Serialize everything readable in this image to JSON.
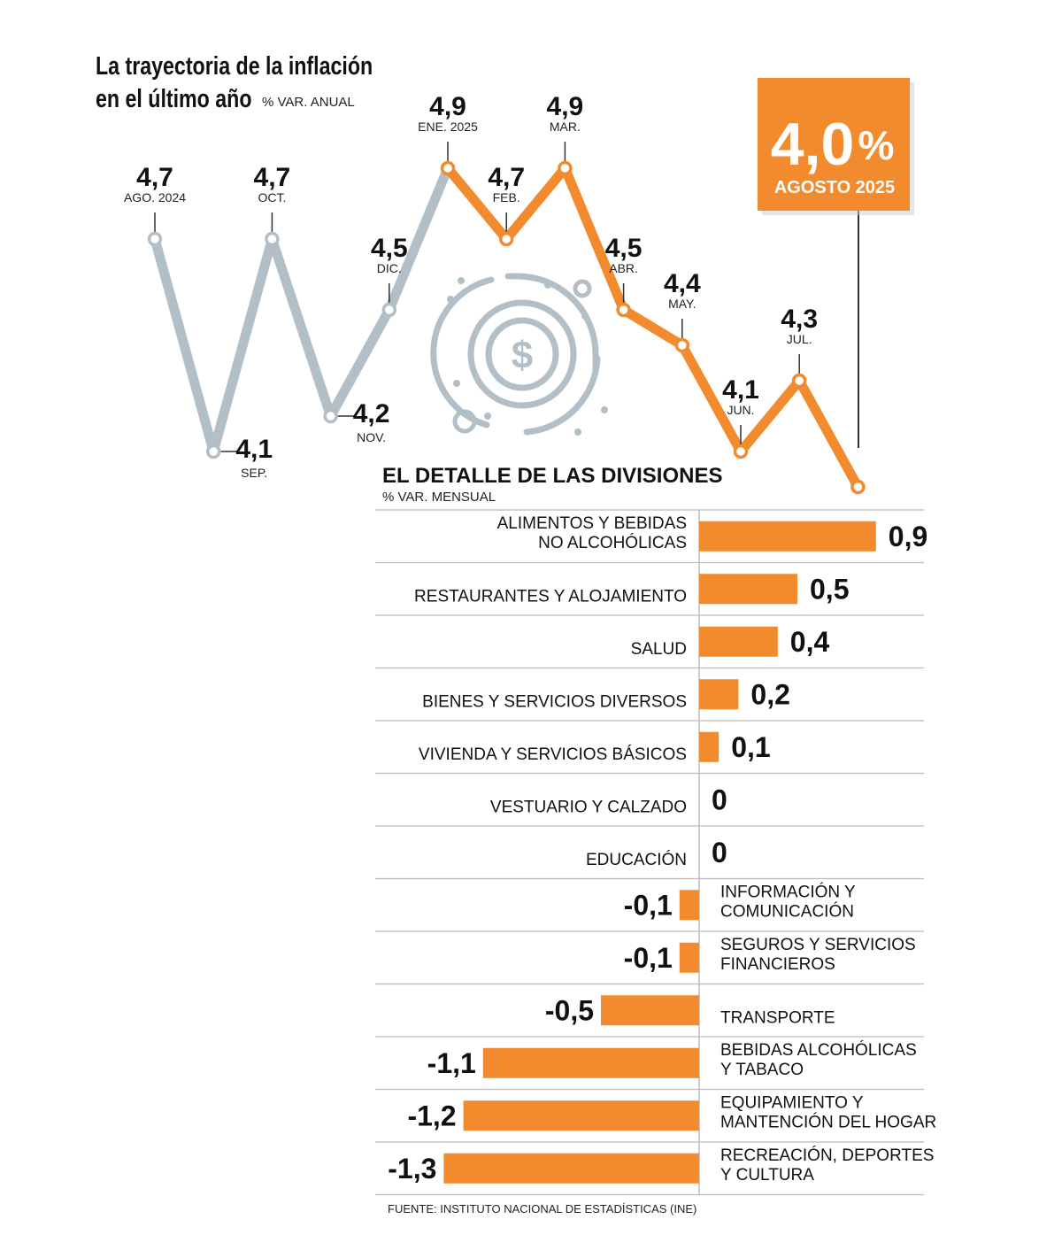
{
  "header": {
    "title_line1": "La trayectoria de la inflación",
    "title_line2": "en el último año",
    "unit": "% VAR. ANUAL"
  },
  "callout": {
    "value": "4,0",
    "unit": "%",
    "label": "AGOSTO 2025"
  },
  "detail": {
    "title": "EL DETALLE DE LAS DIVISIONES",
    "unit": "% VAR. MENSUAL"
  },
  "source": "FUENTE: INSTITUTO NACIONAL DE ESTADÍSTICAS (INE)",
  "colors": {
    "orange": "#F28A2E",
    "gray": "#B3BFC6",
    "grid": "#BBBBBB"
  },
  "icon": "dollar-coin-icon",
  "chart_data": [
    {
      "type": "line",
      "title": "La trayectoria de la inflación en el último año",
      "ylabel": "% VAR. ANUAL",
      "x": [
        "AGO. 2024",
        "SEP.",
        "OCT.",
        "NOV.",
        "DIC.",
        "ENE. 2025",
        "FEB.",
        "MAR.",
        "ABR.",
        "MAY.",
        "JUN.",
        "JUL.",
        ""
      ],
      "values": [
        4.7,
        4.1,
        4.7,
        4.2,
        4.5,
        4.9,
        4.7,
        4.9,
        4.5,
        4.4,
        4.1,
        4.3,
        4.0
      ],
      "value_labels": [
        "4,7",
        "4,1",
        "4,7",
        "4,2",
        "4,5",
        "4,9",
        "4,7",
        "4,9",
        "4,5",
        "4,4",
        "4,1",
        "4,3",
        ""
      ],
      "series_colors": {
        "2024": "#B3BFC6",
        "2025": "#F28A2E"
      }
    },
    {
      "type": "bar",
      "orientation": "horizontal",
      "title": "EL DETALLE DE LAS DIVISIONES",
      "xlabel": "% VAR. MENSUAL",
      "categories": [
        [
          "ALIMENTOS Y BEBIDAS",
          "NO ALCOHÓLICAS"
        ],
        [
          "RESTAURANTES Y ALOJAMIENTO"
        ],
        [
          "SALUD"
        ],
        [
          "BIENES Y SERVICIOS DIVERSOS"
        ],
        [
          "VIVIENDA Y SERVICIOS BÁSICOS"
        ],
        [
          "VESTUARIO Y CALZADO"
        ],
        [
          "EDUCACIÓN"
        ],
        [
          "INFORMACIÓN Y",
          "COMUNICACIÓN"
        ],
        [
          "SEGUROS Y SERVICIOS",
          "FINANCIEROS"
        ],
        [
          "TRANSPORTE"
        ],
        [
          "BEBIDAS ALCOHÓLICAS",
          "Y TABACO"
        ],
        [
          "EQUIPAMIENTO Y",
          "MANTENCIÓN DEL HOGAR"
        ],
        [
          "RECREACIÓN, DEPORTES",
          "Y CULTURA"
        ]
      ],
      "values": [
        0.9,
        0.5,
        0.4,
        0.2,
        0.1,
        0,
        0,
        -0.1,
        -0.1,
        -0.5,
        -1.1,
        -1.2,
        -1.3
      ],
      "value_labels": [
        "0,9",
        "0,5",
        "0,4",
        "0,2",
        "0,1",
        "0",
        "0",
        "-0,1",
        "-0,1",
        "-0,5",
        "-1,1",
        "-1,2",
        "-1,3"
      ]
    }
  ]
}
